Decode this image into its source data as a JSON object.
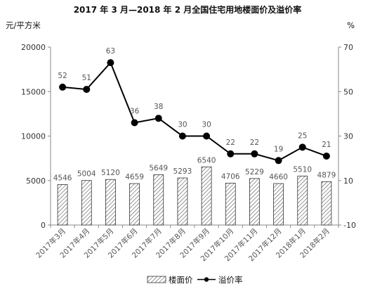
{
  "chart_data": {
    "type": "bar",
    "title": "2017 年 3 月—2018 年 2 月全国住宅用地楼面价及溢价率",
    "ylabel_left": "元/平方米",
    "ylabel_right": "%",
    "categories": [
      "2017年3月",
      "2017年4月",
      "2017年5月",
      "2017年6月",
      "2017年7月",
      "2017年8月",
      "2017年9月",
      "2017年10月",
      "2017年11月",
      "2017年12月",
      "2018年1月",
      "2018年2月"
    ],
    "series": [
      {
        "name": "楼面价",
        "kind": "bar",
        "axis": "left",
        "pattern": "diagonal-hatch",
        "values": [
          4546,
          5004,
          5120,
          4659,
          5649,
          5293,
          6540,
          4706,
          5229,
          4660,
          5510,
          4879
        ]
      },
      {
        "name": "溢价率",
        "kind": "line",
        "axis": "right",
        "marker": "circle",
        "values": [
          52,
          51,
          63,
          36,
          38,
          30,
          30,
          22,
          22,
          19,
          25,
          21
        ]
      }
    ],
    "ylim_left": [
      0,
      20000
    ],
    "yticks_left": [
      0,
      5000,
      10000,
      15000,
      20000
    ],
    "ylim_right": [
      -10,
      70
    ],
    "yticks_right": [
      -10,
      10,
      30,
      50,
      70
    ],
    "grid": false,
    "legend": "bottom-center",
    "colors": {
      "bar_stroke": "#333333",
      "line": "#000000",
      "axis": "#888888"
    }
  }
}
